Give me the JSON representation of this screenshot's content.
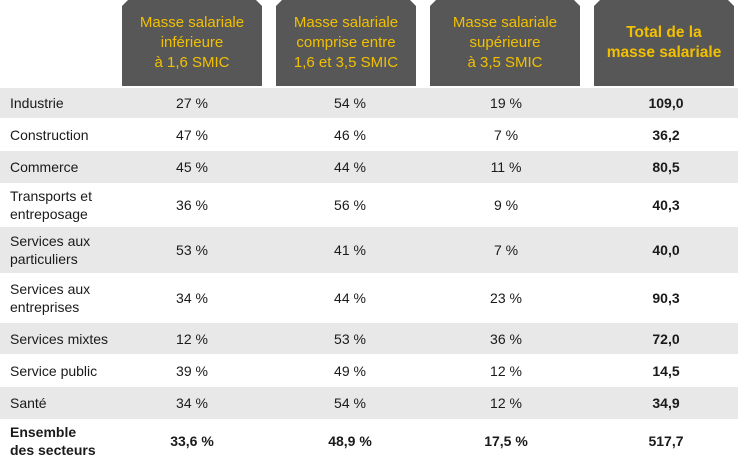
{
  "headers": [
    {
      "label": "Masse salariale\ninférieure\nà 1,6 SMIC"
    },
    {
      "label": "Masse salariale\ncomprise entre\n1,6 et 3,5 SMIC"
    },
    {
      "label": "Masse salariale\nsupérieure\nà 3,5 SMIC"
    },
    {
      "label": "Total de la\nmasse salariale"
    }
  ],
  "rows": [
    {
      "label": "Industrie",
      "c1": "27 %",
      "c2": "54 %",
      "c3": "19 %",
      "total": "109,0"
    },
    {
      "label": "Construction",
      "c1": "47 %",
      "c2": "46 %",
      "c3": "7 %",
      "total": "36,2"
    },
    {
      "label": "Commerce",
      "c1": "45 %",
      "c2": "44 %",
      "c3": "11 %",
      "total": "80,5"
    },
    {
      "label": "Transports et\nentreposage",
      "c1": "36 %",
      "c2": "56 %",
      "c3": "9 %",
      "total": "40,3"
    },
    {
      "label": "Services aux\nparticuliers",
      "c1": "53 %",
      "c2": "41 %",
      "c3": "7 %",
      "total": "40,0"
    },
    {
      "label": "Services aux\nentreprises",
      "c1": "34 %",
      "c2": "44 %",
      "c3": "23 %",
      "total": "90,3"
    },
    {
      "label": "Services mixtes",
      "c1": "12 %",
      "c2": "53 %",
      "c3": "36 %",
      "total": "72,0"
    },
    {
      "label": "Service public",
      "c1": "39 %",
      "c2": "49 %",
      "c3": "12 %",
      "total": "14,5"
    },
    {
      "label": "Santé",
      "c1": "34 %",
      "c2": "54 %",
      "c3": "12 %",
      "total": "34,9"
    },
    {
      "label": "Ensemble\ndes secteurs",
      "c1": "33,6 %",
      "c2": "48,9 %",
      "c3": "17,5 %",
      "total": "517,7"
    }
  ],
  "colors": {
    "header_bg": "#575757",
    "header_text": "#f2c000",
    "row_shade": "#e8e8e8"
  }
}
